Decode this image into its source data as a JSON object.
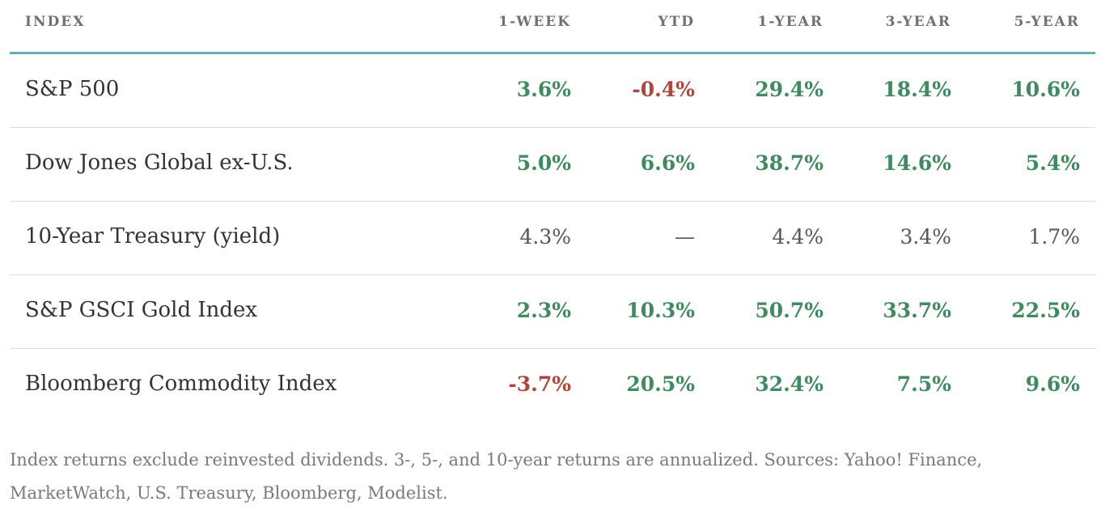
{
  "table": {
    "headers": [
      "INDEX",
      "1-WEEK",
      "YTD",
      "1-YEAR",
      "3-YEAR",
      "5-YEAR"
    ],
    "rows": [
      [
        "S&P 500",
        "3.6%",
        "-0.4%",
        "29.4%",
        "18.4%",
        "10.6%"
      ],
      [
        "Dow Jones Global ex-U.S.",
        "5.0%",
        "6.6%",
        "38.7%",
        "14.6%",
        "5.4%"
      ],
      [
        "10-Year Treasury (yield)",
        "4.3%",
        "—",
        "4.4%",
        "3.4%",
        "1.7%"
      ],
      [
        "S&P GSCI Gold Index",
        "2.3%",
        "10.3%",
        "50.7%",
        "33.7%",
        "22.5%"
      ],
      [
        "Bloomberg Commodity Index",
        "-3.7%",
        "20.5%",
        "32.4%",
        "7.5%",
        "9.6%"
      ]
    ]
  },
  "footnote": "Index returns exclude reinvested dividends. 3-, 5-, and 10-year returns are annualized. Sources: Yahoo! Finance, MarketWatch, U.S. Treasury, Bloomberg, Modelist."
}
